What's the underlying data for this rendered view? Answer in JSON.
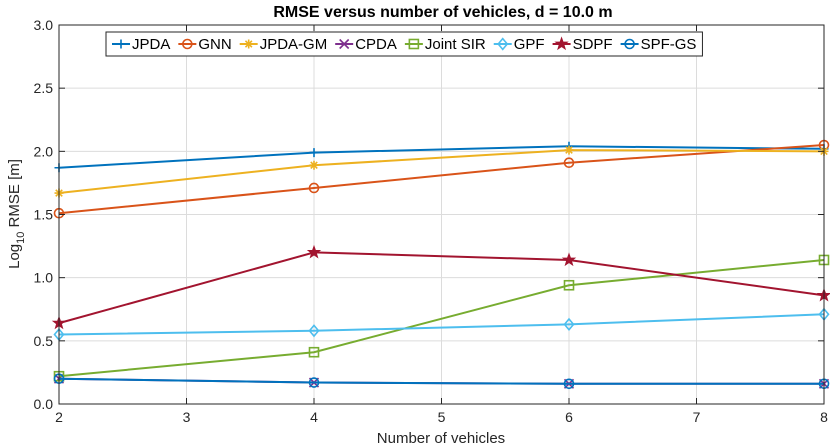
{
  "chart_data": {
    "type": "line",
    "title": "RMSE versus number of vehicles, d = 10.0 m",
    "xlabel": "Number of vehicles",
    "ylabel_main": "Log",
    "ylabel_sub": "10",
    "ylabel_rest": " RMSE [m]",
    "x": [
      2,
      4,
      6,
      8
    ],
    "xlim": [
      2,
      8
    ],
    "ylim": [
      0,
      3
    ],
    "xticks": [
      "2",
      "3",
      "4",
      "5",
      "6",
      "7",
      "8"
    ],
    "yticks": [
      "0.0",
      "0.5",
      "1.0",
      "1.5",
      "2.0",
      "2.5",
      "3.0"
    ],
    "grid": true,
    "legend_position": "top",
    "series": [
      {
        "name": "JPDA",
        "color": "#0072BD",
        "marker": "plus",
        "values": [
          1.87,
          1.99,
          2.04,
          2.02
        ]
      },
      {
        "name": "GNN",
        "color": "#D95319",
        "marker": "circle",
        "values": [
          1.51,
          1.71,
          1.91,
          2.05
        ]
      },
      {
        "name": "JPDA-GM",
        "color": "#EDB120",
        "marker": "asterisk",
        "values": [
          1.67,
          1.89,
          2.01,
          2.0
        ]
      },
      {
        "name": "CPDA",
        "color": "#7E2F8E",
        "marker": "cross",
        "values": [
          0.2,
          0.17,
          0.16,
          0.16
        ]
      },
      {
        "name": "Joint SIR",
        "color": "#77AC30",
        "marker": "square",
        "values": [
          0.22,
          0.41,
          0.94,
          1.14
        ]
      },
      {
        "name": "GPF",
        "color": "#4DBEEE",
        "marker": "diamond",
        "values": [
          0.55,
          0.58,
          0.63,
          0.71
        ]
      },
      {
        "name": "SDPF",
        "color": "#A2142F",
        "marker": "pentagram",
        "values": [
          0.64,
          1.2,
          1.14,
          0.86
        ]
      },
      {
        "name": "SPF-GS",
        "color": "#0072BD",
        "marker": "circle",
        "values": [
          0.2,
          0.17,
          0.16,
          0.16
        ]
      }
    ]
  }
}
